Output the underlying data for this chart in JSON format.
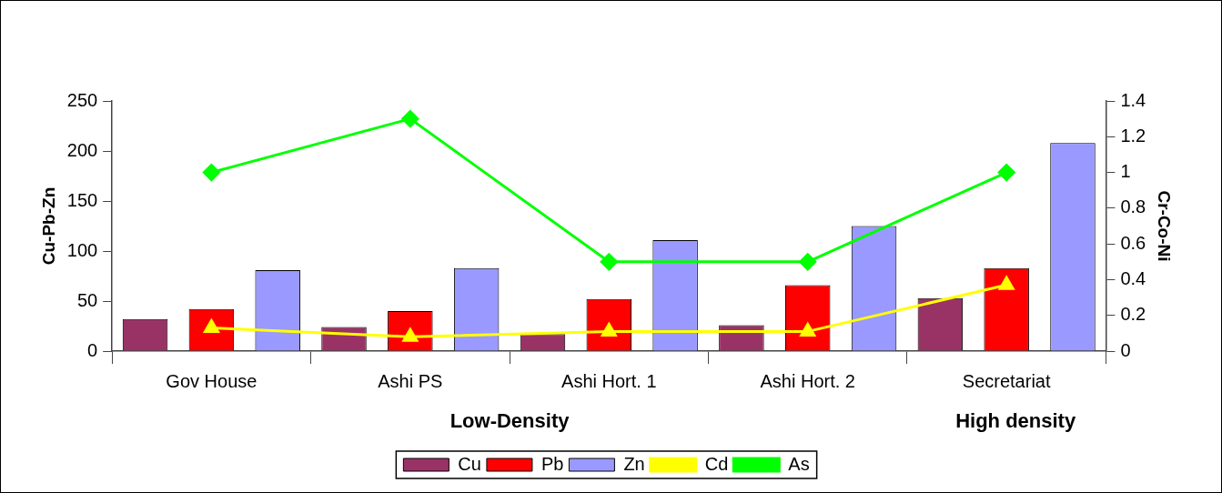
{
  "chart_data": {
    "type": "bar",
    "categories": [
      "Gov House",
      "Ashi PS",
      "Ashi Hort. 1",
      "Ashi Hort. 2",
      "Secretariat"
    ],
    "series": [
      {
        "name": "Cu",
        "color": "#993366",
        "values": [
          32,
          24,
          17,
          26,
          53
        ]
      },
      {
        "name": "Pb",
        "color": "#ff0000",
        "values": [
          42,
          40,
          52,
          66,
          83
        ]
      },
      {
        "name": "Zn",
        "color": "#9999ff",
        "values": [
          81,
          83,
          111,
          125,
          208
        ]
      },
      {
        "name": "Cd",
        "type": "line",
        "axis": "y2",
        "marker": "triangle",
        "color": "#ffff00",
        "values": [
          0.13,
          0.08,
          0.11,
          0.11,
          0.37
        ]
      },
      {
        "name": "As",
        "type": "line",
        "axis": "y2",
        "marker": "diamond",
        "color": "#00ff00",
        "values": [
          1.0,
          1.3,
          0.5,
          0.5,
          1.0
        ]
      }
    ],
    "ylabel": "Cu-Pb-Zn",
    "y2label": "Cr-Co-Ni",
    "ylim": [
      0,
      250
    ],
    "yticks": [
      0,
      50,
      100,
      150,
      200,
      250
    ],
    "y2lim": [
      0,
      1.4
    ],
    "y2ticks": [
      0,
      0.2,
      0.4,
      0.6,
      0.8,
      1,
      1.2,
      1.4
    ],
    "annotations": [
      "Low-Density",
      "High density"
    ],
    "grid": false,
    "legend": "bottom"
  }
}
